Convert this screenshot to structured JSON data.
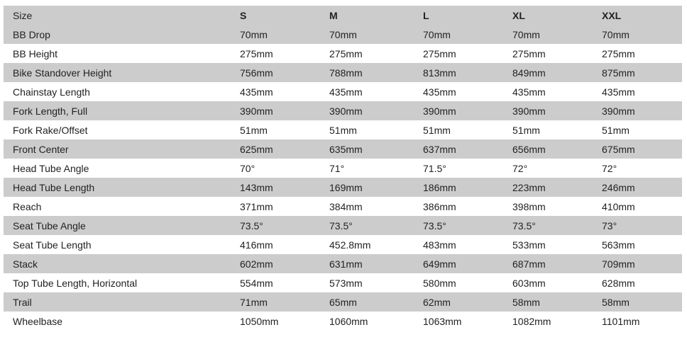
{
  "header": [
    "Size",
    "S",
    "M",
    "L",
    "XL",
    "XXL"
  ],
  "rows": [
    [
      "BB Drop",
      "70mm",
      "70mm",
      "70mm",
      "70mm",
      "70mm"
    ],
    [
      "BB Height",
      "275mm",
      "275mm",
      "275mm",
      "275mm",
      "275mm"
    ],
    [
      "Bike Standover Height",
      "756mm",
      "788mm",
      "813mm",
      "849mm",
      "875mm"
    ],
    [
      "Chainstay Length",
      "435mm",
      "435mm",
      "435mm",
      "435mm",
      "435mm"
    ],
    [
      "Fork Length, Full",
      "390mm",
      "390mm",
      "390mm",
      "390mm",
      "390mm"
    ],
    [
      "Fork Rake/Offset",
      "51mm",
      "51mm",
      "51mm",
      "51mm",
      "51mm"
    ],
    [
      "Front Center",
      "625mm",
      "635mm",
      "637mm",
      "656mm",
      "675mm"
    ],
    [
      "Head Tube Angle",
      "70°",
      "71°",
      "71.5°",
      "72°",
      "72°"
    ],
    [
      "Head Tube Length",
      "143mm",
      "169mm",
      "186mm",
      "223mm",
      "246mm"
    ],
    [
      "Reach",
      "371mm",
      "384mm",
      "386mm",
      "398mm",
      "410mm"
    ],
    [
      "Seat Tube Angle",
      "73.5°",
      "73.5°",
      "73.5°",
      "73.5°",
      "73°"
    ],
    [
      "Seat Tube Length",
      "416mm",
      "452.8mm",
      "483mm",
      "533mm",
      "563mm"
    ],
    [
      "Stack",
      "602mm",
      "631mm",
      "649mm",
      "687mm",
      "709mm"
    ],
    [
      "Top Tube Length, Horizontal",
      "554mm",
      "573mm",
      "580mm",
      "603mm",
      "628mm"
    ],
    [
      "Trail",
      "71mm",
      "65mm",
      "62mm",
      "58mm",
      "58mm"
    ],
    [
      "Wheelbase",
      "1050mm",
      "1060mm",
      "1063mm",
      "1082mm",
      "1101mm"
    ]
  ],
  "colors": {
    "stripe": "#cccccc",
    "background": "#ffffff",
    "text": "#222222"
  }
}
